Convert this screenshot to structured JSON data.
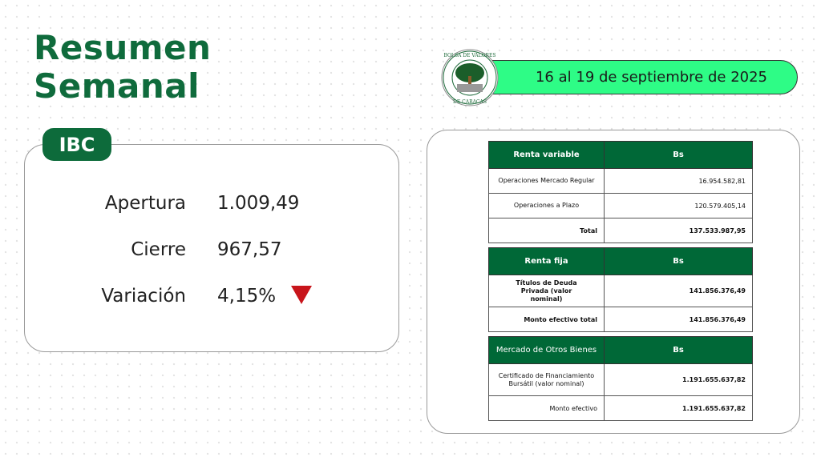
{
  "title": {
    "line1": "Resumen",
    "line2": "Semanal"
  },
  "date_range": "16 al 19 de septiembre de 2025",
  "logo": {
    "text": "BOLSA DE VALORES DE CARACAS"
  },
  "ibc": {
    "tab": "IBC",
    "rows": [
      {
        "label": "Apertura",
        "value": "1.009,49"
      },
      {
        "label": "Cierre",
        "value": "967,57"
      },
      {
        "label": "Variación",
        "value": "4,15%"
      }
    ],
    "trend_icon": "triangle-down",
    "trend_color": "#c8151b"
  },
  "tables": [
    {
      "header": [
        "Renta variable",
        "Bs"
      ],
      "rows": [
        [
          "Operaciones Mercado Regular",
          "16.954.582,81"
        ],
        [
          "Operaciones a Plazo",
          "120.579.405,14"
        ],
        [
          "Total",
          "137.533.987,95"
        ]
      ]
    },
    {
      "header": [
        "Renta fija",
        "Bs"
      ],
      "rows": [
        [
          "Títulos de Deuda Privada (valor nominal)",
          "141.856.376,49"
        ],
        [
          "Monto efectivo total",
          "141.856.376,49"
        ]
      ]
    },
    {
      "header": [
        "Mercado de Otros Bienes",
        "Bs"
      ],
      "rows": [
        [
          "Certificado de Financiamiento Bursátil (valor nominal)",
          "1.191.655.637,82"
        ],
        [
          "Monto efectivo",
          "1.191.655.637,82"
        ]
      ]
    }
  ],
  "colors": {
    "brand_green": "#0d6b3b",
    "pill_green": "#2efc86",
    "header_green": "#006837"
  }
}
